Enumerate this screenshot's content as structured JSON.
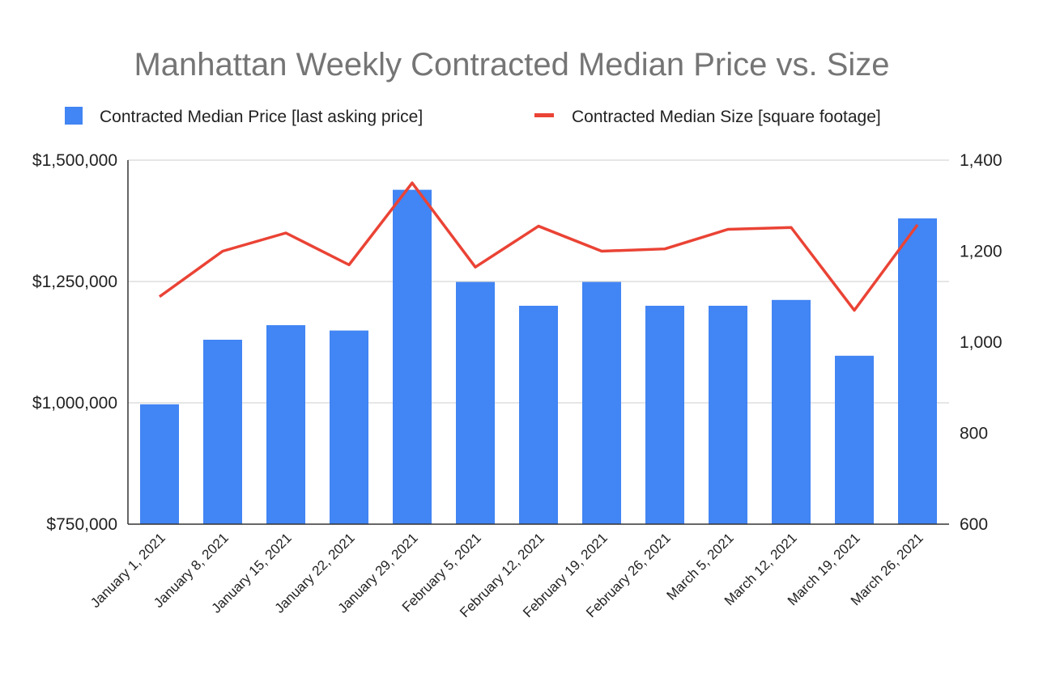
{
  "chart_data": {
    "type": "bar",
    "title": "Manhattan Weekly Contracted Median Price vs. Size",
    "categories": [
      "January 1, 2021",
      "January 8, 2021",
      "January 15, 2021",
      "January 22, 2021",
      "January 29, 2021",
      "February 5, 2021",
      "February 12, 2021",
      "February 19, 2021",
      "February 26, 2021",
      "March 5, 2021",
      "March 12, 2021",
      "March 19, 2021",
      "March 26, 2021"
    ],
    "series": [
      {
        "name": "Contracted Median Price [last asking price]",
        "type": "bar",
        "axis": "left",
        "color": "#4285f4",
        "values": [
          997000,
          1130000,
          1160000,
          1149000,
          1439000,
          1249000,
          1200000,
          1249000,
          1200000,
          1200000,
          1212000,
          1097000,
          1380000
        ]
      },
      {
        "name": "Contracted Median Size [square footage]",
        "type": "line",
        "axis": "right",
        "color": "#ea4335",
        "values": [
          1100,
          1200,
          1240,
          1170,
          1350,
          1165,
          1255,
          1200,
          1205,
          1248,
          1252,
          1070,
          1258
        ]
      }
    ],
    "y_left": {
      "min": 750000,
      "max": 1500000,
      "ticks": [
        750000,
        1000000,
        1250000,
        1500000
      ],
      "tick_labels": [
        "$750,000",
        "$1,000,000",
        "$1,250,000",
        "$1,500,000"
      ]
    },
    "y_right": {
      "min": 600,
      "max": 1400,
      "ticks": [
        600,
        800,
        1000,
        1200,
        1400
      ],
      "tick_labels": [
        "600",
        "800",
        "1,000",
        "1,200",
        "1,400"
      ]
    },
    "grid": true,
    "legend_position": "top"
  }
}
